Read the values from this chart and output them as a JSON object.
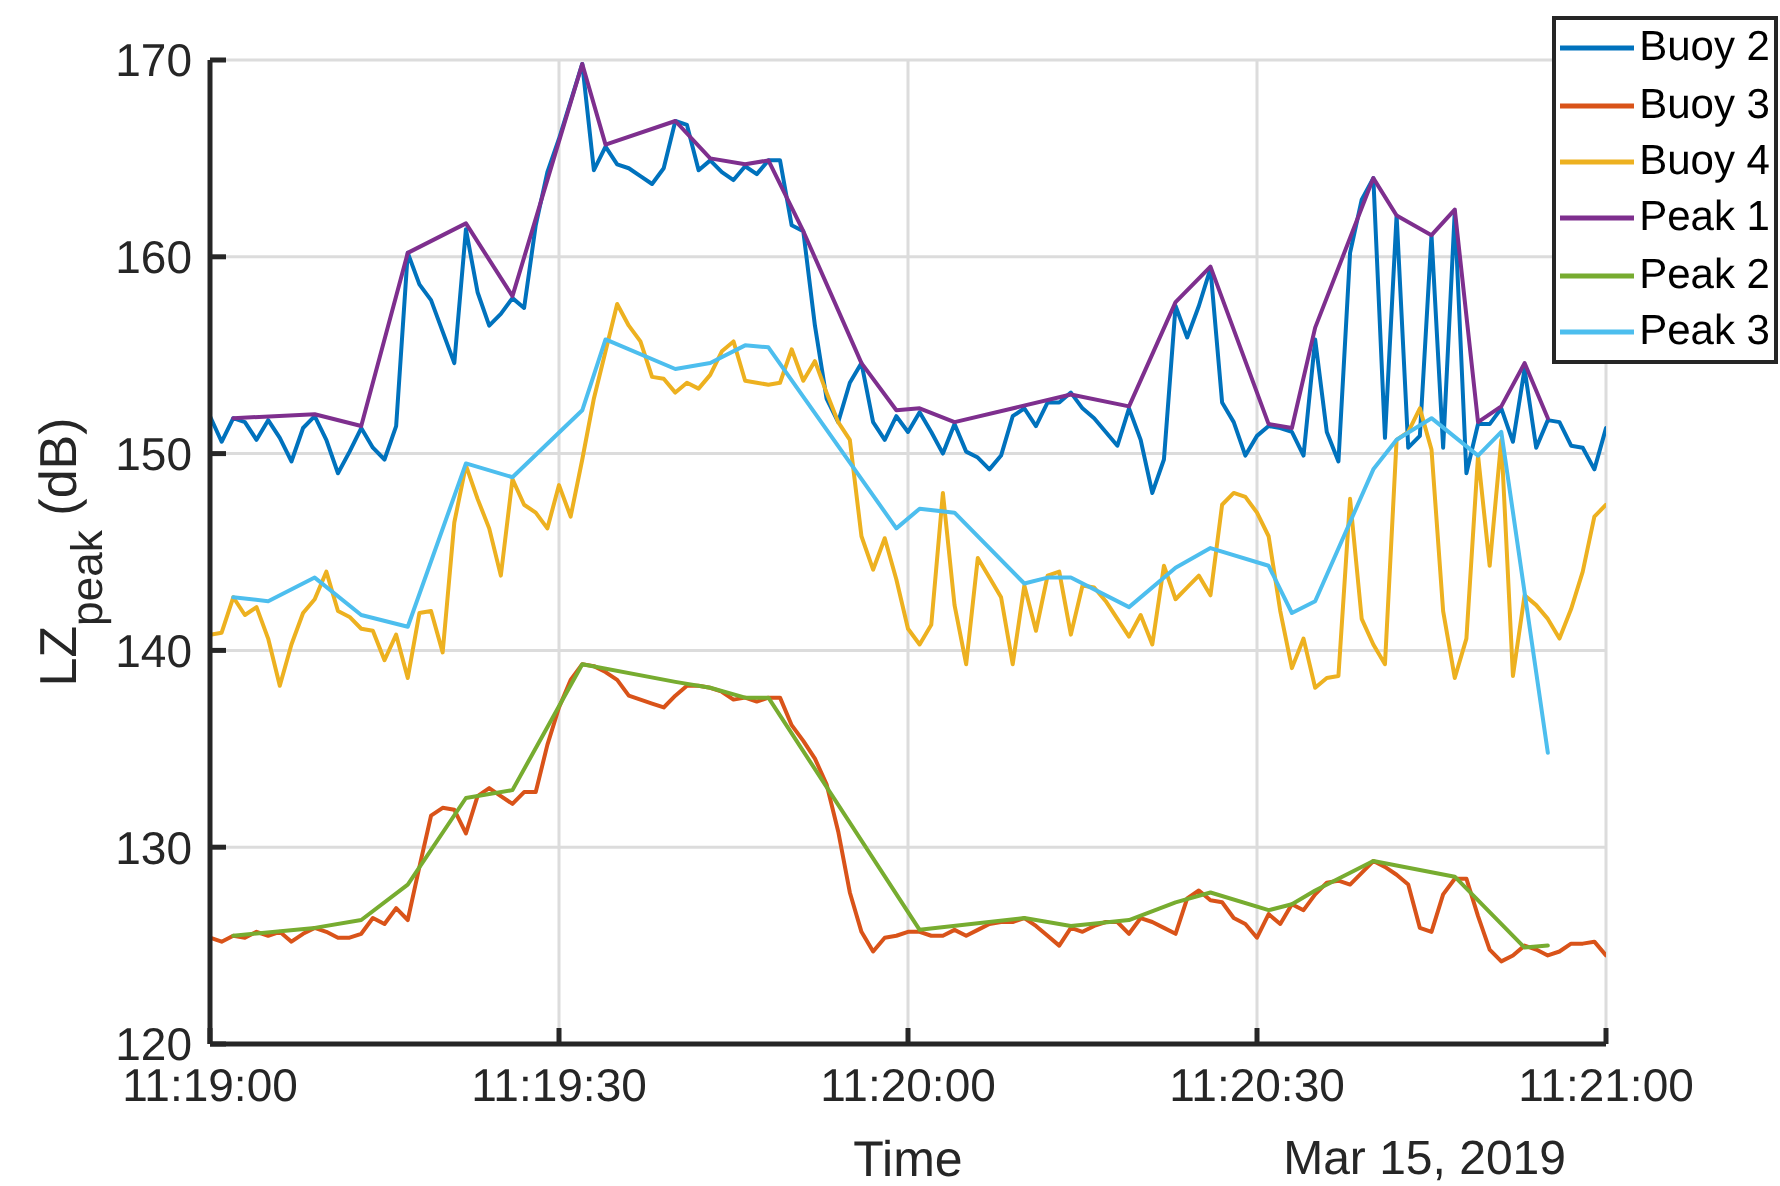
{
  "chart_data": {
    "type": "line",
    "xlabel": "Time",
    "ylabel": "LZ$_{peak}$ (dB)",
    "annotations": [
      "Mar 15, 2019"
    ],
    "x": [
      "2019-03-15T11:19:00",
      "2019-03-15T11:19:01",
      "2019-03-15T11:19:02",
      "2019-03-15T11:19:03",
      "2019-03-15T11:19:04",
      "2019-03-15T11:19:05",
      "2019-03-15T11:19:06",
      "2019-03-15T11:19:07",
      "2019-03-15T11:19:08",
      "2019-03-15T11:19:09",
      "2019-03-15T11:19:10",
      "2019-03-15T11:19:11",
      "2019-03-15T11:19:12",
      "2019-03-15T11:19:13",
      "2019-03-15T11:19:14",
      "2019-03-15T11:19:15",
      "2019-03-15T11:19:16",
      "2019-03-15T11:19:17",
      "2019-03-15T11:19:18",
      "2019-03-15T11:19:19",
      "2019-03-15T11:19:20",
      "2019-03-15T11:19:21",
      "2019-03-15T11:19:22",
      "2019-03-15T11:19:23",
      "2019-03-15T11:19:24",
      "2019-03-15T11:19:25",
      "2019-03-15T11:19:26",
      "2019-03-15T11:19:27",
      "2019-03-15T11:19:28",
      "2019-03-15T11:19:29",
      "2019-03-15T11:19:30",
      "2019-03-15T11:19:31",
      "2019-03-15T11:19:32",
      "2019-03-15T11:19:33",
      "2019-03-15T11:19:34",
      "2019-03-15T11:19:35",
      "2019-03-15T11:19:36",
      "2019-03-15T11:19:37",
      "2019-03-15T11:19:38",
      "2019-03-15T11:19:39",
      "2019-03-15T11:19:40",
      "2019-03-15T11:19:41",
      "2019-03-15T11:19:42",
      "2019-03-15T11:19:43",
      "2019-03-15T11:19:44",
      "2019-03-15T11:19:45",
      "2019-03-15T11:19:46",
      "2019-03-15T11:19:47",
      "2019-03-15T11:19:48",
      "2019-03-15T11:19:49",
      "2019-03-15T11:19:50",
      "2019-03-15T11:19:51",
      "2019-03-15T11:19:52",
      "2019-03-15T11:19:53",
      "2019-03-15T11:19:54",
      "2019-03-15T11:19:55",
      "2019-03-15T11:19:56",
      "2019-03-15T11:19:57",
      "2019-03-15T11:19:58",
      "2019-03-15T11:19:59",
      "2019-03-15T11:20:00",
      "2019-03-15T11:20:01",
      "2019-03-15T11:20:02",
      "2019-03-15T11:20:03",
      "2019-03-15T11:20:04",
      "2019-03-15T11:20:05",
      "2019-03-15T11:20:06",
      "2019-03-15T11:20:07",
      "2019-03-15T11:20:08",
      "2019-03-15T11:20:09",
      "2019-03-15T11:20:10",
      "2019-03-15T11:20:11",
      "2019-03-15T11:20:12",
      "2019-03-15T11:20:13",
      "2019-03-15T11:20:14",
      "2019-03-15T11:20:15",
      "2019-03-15T11:20:16",
      "2019-03-15T11:20:17",
      "2019-03-15T11:20:18",
      "2019-03-15T11:20:19",
      "2019-03-15T11:20:20",
      "2019-03-15T11:20:21",
      "2019-03-15T11:20:22",
      "2019-03-15T11:20:23",
      "2019-03-15T11:20:24",
      "2019-03-15T11:20:25",
      "2019-03-15T11:20:26",
      "2019-03-15T11:20:27",
      "2019-03-15T11:20:28",
      "2019-03-15T11:20:29",
      "2019-03-15T11:20:30",
      "2019-03-15T11:20:31",
      "2019-03-15T11:20:32",
      "2019-03-15T11:20:33",
      "2019-03-15T11:20:34",
      "2019-03-15T11:20:35",
      "2019-03-15T11:20:36",
      "2019-03-15T11:20:37",
      "2019-03-15T11:20:38",
      "2019-03-15T11:20:39",
      "2019-03-15T11:20:40",
      "2019-03-15T11:20:41",
      "2019-03-15T11:20:42",
      "2019-03-15T11:20:43",
      "2019-03-15T11:20:44",
      "2019-03-15T11:20:45",
      "2019-03-15T11:20:46",
      "2019-03-15T11:20:47",
      "2019-03-15T11:20:48",
      "2019-03-15T11:20:49",
      "2019-03-15T11:20:50",
      "2019-03-15T11:20:51",
      "2019-03-15T11:20:52",
      "2019-03-15T11:20:53",
      "2019-03-15T11:20:54",
      "2019-03-15T11:20:55",
      "2019-03-15T11:20:56",
      "2019-03-15T11:20:57",
      "2019-03-15T11:20:58",
      "2019-03-15T11:20:59",
      "2019-03-15T11:21:00"
    ],
    "series": [
      {
        "name": "Buoy 2",
        "color": "#0072bd",
        "values": [
          151.9,
          150.6,
          151.8,
          151.6,
          150.7,
          151.7,
          150.8,
          149.6,
          151.3,
          151.9,
          150.7,
          149.0,
          150.1,
          151.3,
          150.3,
          149.7,
          151.4,
          160.2,
          158.6,
          157.8,
          156.2,
          154.6,
          161.4,
          158.2,
          156.5,
          157.1,
          157.9,
          157.4,
          161.6,
          164.3,
          166.0,
          167.9,
          169.8,
          164.4,
          165.6,
          164.7,
          164.5,
          164.1,
          163.7,
          164.5,
          166.9,
          166.7,
          164.4,
          164.9,
          164.3,
          163.9,
          164.6,
          164.2,
          164.9,
          164.9,
          161.6,
          161.3,
          156.5,
          152.8,
          151.6,
          153.6,
          154.6,
          151.6,
          150.7,
          151.9,
          151.1,
          152.1,
          151.1,
          150.0,
          151.5,
          150.1,
          149.8,
          149.2,
          149.9,
          151.9,
          152.3,
          151.4,
          152.6,
          152.6,
          153.1,
          152.3,
          151.8,
          151.1,
          150.4,
          152.3,
          150.7,
          148.0,
          149.7,
          157.5,
          155.9,
          157.5,
          159.4,
          152.6,
          151.6,
          149.9,
          150.9,
          151.4,
          151.3,
          151.1,
          149.9,
          155.8,
          151.1,
          149.6,
          160.2,
          162.9,
          164.0,
          150.8,
          162.1,
          150.3,
          150.9,
          161.1,
          150.3,
          162.3,
          149.0,
          151.5,
          151.5,
          152.3,
          150.6,
          154.3,
          150.3,
          151.7,
          151.6,
          150.4,
          150.3,
          149.2,
          151.3
        ]
      },
      {
        "name": "Buoy 3",
        "color": "#d95319",
        "values": [
          125.4,
          125.2,
          125.5,
          125.4,
          125.7,
          125.5,
          125.7,
          125.2,
          125.6,
          125.9,
          125.7,
          125.4,
          125.4,
          125.6,
          126.4,
          126.1,
          126.9,
          126.3,
          129.0,
          131.6,
          132.0,
          131.9,
          130.7,
          132.6,
          133.0,
          132.6,
          132.2,
          132.8,
          132.8,
          135.2,
          137.1,
          138.5,
          139.3,
          139.2,
          138.9,
          138.5,
          137.7,
          137.5,
          137.3,
          137.1,
          137.7,
          138.2,
          138.2,
          138.1,
          137.9,
          137.5,
          137.6,
          137.4,
          137.6,
          137.6,
          136.2,
          135.4,
          134.5,
          133.2,
          130.8,
          127.7,
          125.7,
          124.7,
          125.4,
          125.5,
          125.7,
          125.7,
          125.5,
          125.5,
          125.8,
          125.5,
          125.8,
          126.1,
          126.2,
          126.2,
          126.4,
          126.0,
          125.5,
          125.0,
          125.9,
          125.7,
          126.0,
          126.2,
          126.2,
          125.6,
          126.4,
          126.2,
          125.9,
          125.6,
          127.4,
          127.8,
          127.3,
          127.2,
          126.4,
          126.1,
          125.4,
          126.6,
          126.1,
          127.1,
          126.8,
          127.6,
          128.2,
          128.3,
          128.1,
          128.7,
          129.3,
          129.0,
          128.6,
          128.1,
          125.9,
          125.7,
          127.6,
          128.4,
          128.4,
          126.5,
          124.8,
          124.2,
          124.5,
          125.0,
          124.8,
          124.5,
          124.7,
          125.1,
          125.1,
          125.2,
          124.5
        ]
      },
      {
        "name": "Buoy 4",
        "color": "#edb120",
        "values": [
          140.8,
          140.9,
          142.7,
          141.8,
          142.2,
          140.6,
          138.2,
          140.3,
          141.9,
          142.6,
          144.0,
          142.0,
          141.7,
          141.1,
          141.0,
          139.5,
          140.8,
          138.6,
          141.9,
          142.0,
          139.9,
          146.5,
          149.4,
          147.7,
          146.2,
          143.8,
          148.7,
          147.4,
          147.0,
          146.2,
          148.4,
          146.8,
          149.7,
          152.8,
          155.2,
          157.6,
          156.5,
          155.7,
          153.9,
          153.8,
          153.1,
          153.6,
          153.3,
          154.0,
          155.2,
          155.7,
          153.7,
          153.6,
          153.5,
          153.6,
          155.3,
          153.7,
          154.7,
          153.1,
          151.6,
          150.7,
          145.8,
          144.1,
          145.7,
          143.6,
          141.1,
          140.3,
          141.3,
          148.0,
          142.3,
          139.3,
          144.7,
          143.7,
          142.7,
          139.3,
          143.3,
          141.0,
          143.8,
          144.0,
          140.8,
          143.3,
          143.2,
          142.5,
          141.6,
          140.7,
          141.8,
          140.3,
          144.3,
          142.6,
          143.2,
          143.8,
          142.8,
          147.4,
          148.0,
          147.8,
          147.0,
          145.8,
          142.0,
          139.1,
          140.6,
          138.1,
          138.6,
          138.7,
          147.7,
          141.6,
          140.3,
          139.3,
          150.7,
          151.1,
          152.3,
          150.2,
          142.0,
          138.6,
          140.6,
          149.9,
          144.3,
          150.7,
          138.7,
          142.8,
          142.3,
          141.6,
          140.6,
          142.1,
          144.0,
          146.8,
          147.4
        ]
      },
      {
        "name": "Peak 1",
        "color": "#7e2f8e",
        "x": [
          "2019-03-15T11:19:02",
          "2019-03-15T11:19:09",
          "2019-03-15T11:19:13",
          "2019-03-15T11:19:17",
          "2019-03-15T11:19:22",
          "2019-03-15T11:19:26",
          "2019-03-15T11:19:32",
          "2019-03-15T11:19:34",
          "2019-03-15T11:19:40",
          "2019-03-15T11:19:43",
          "2019-03-15T11:19:46",
          "2019-03-15T11:19:48",
          "2019-03-15T11:19:51",
          "2019-03-15T11:19:56",
          "2019-03-15T11:19:59",
          "2019-03-15T11:20:01",
          "2019-03-15T11:20:04",
          "2019-03-15T11:20:14",
          "2019-03-15T11:20:19",
          "2019-03-15T11:20:23",
          "2019-03-15T11:20:26",
          "2019-03-15T11:20:31",
          "2019-03-15T11:20:33",
          "2019-03-15T11:20:35",
          "2019-03-15T11:20:40",
          "2019-03-15T11:20:42",
          "2019-03-15T11:20:45",
          "2019-03-15T11:20:47",
          "2019-03-15T11:20:49",
          "2019-03-15T11:20:51",
          "2019-03-15T11:20:53",
          "2019-03-15T11:20:55"
        ],
        "values": [
          151.8,
          152.0,
          151.4,
          160.2,
          161.7,
          158.0,
          169.8,
          165.7,
          166.9,
          165.0,
          164.7,
          164.9,
          161.3,
          154.6,
          152.2,
          152.3,
          151.6,
          153.0,
          152.4,
          157.7,
          159.5,
          151.5,
          151.3,
          156.4,
          164.0,
          162.1,
          161.1,
          162.4,
          151.6,
          152.4,
          154.6,
          151.8
        ]
      },
      {
        "name": "Peak 2",
        "color": "#77ac30",
        "x": [
          "2019-03-15T11:19:02",
          "2019-03-15T11:19:09",
          "2019-03-15T11:19:13",
          "2019-03-15T11:19:17",
          "2019-03-15T11:19:22",
          "2019-03-15T11:19:26",
          "2019-03-15T11:19:32",
          "2019-03-15T11:19:40",
          "2019-03-15T11:19:43",
          "2019-03-15T11:19:46",
          "2019-03-15T11:19:48",
          "2019-03-15T11:20:01",
          "2019-03-15T11:20:10",
          "2019-03-15T11:20:14",
          "2019-03-15T11:20:19",
          "2019-03-15T11:20:23",
          "2019-03-15T11:20:26",
          "2019-03-15T11:20:31",
          "2019-03-15T11:20:33",
          "2019-03-15T11:20:35",
          "2019-03-15T11:20:40",
          "2019-03-15T11:20:47",
          "2019-03-15T11:20:53",
          "2019-03-15T11:20:55"
        ],
        "values": [
          125.5,
          125.9,
          126.3,
          128.1,
          132.5,
          132.9,
          139.3,
          138.4,
          138.1,
          137.6,
          137.6,
          125.8,
          126.4,
          126.0,
          126.3,
          127.2,
          127.7,
          126.8,
          127.1,
          127.8,
          129.3,
          128.5,
          124.9,
          125.0
        ]
      },
      {
        "name": "Peak 3",
        "color": "#4dbeee",
        "x": [
          "2019-03-15T11:19:02",
          "2019-03-15T11:19:05",
          "2019-03-15T11:19:09",
          "2019-03-15T11:19:13",
          "2019-03-15T11:19:17",
          "2019-03-15T11:19:22",
          "2019-03-15T11:19:26",
          "2019-03-15T11:19:32",
          "2019-03-15T11:19:34",
          "2019-03-15T11:19:40",
          "2019-03-15T11:19:43",
          "2019-03-15T11:19:46",
          "2019-03-15T11:19:48",
          "2019-03-15T11:19:59",
          "2019-03-15T11:20:01",
          "2019-03-15T11:20:04",
          "2019-03-15T11:20:10",
          "2019-03-15T11:20:12",
          "2019-03-15T11:20:14",
          "2019-03-15T11:20:19",
          "2019-03-15T11:20:23",
          "2019-03-15T11:20:26",
          "2019-03-15T11:20:31",
          "2019-03-15T11:20:33",
          "2019-03-15T11:20:35",
          "2019-03-15T11:20:40",
          "2019-03-15T11:20:42",
          "2019-03-15T11:20:45",
          "2019-03-15T11:20:49",
          "2019-03-15T11:20:51",
          "2019-03-15T11:20:55"
        ],
        "values": [
          142.7,
          142.5,
          143.7,
          141.8,
          141.2,
          149.5,
          148.8,
          152.2,
          155.8,
          154.3,
          154.6,
          155.5,
          155.4,
          146.2,
          147.2,
          147.0,
          143.4,
          143.7,
          143.7,
          142.2,
          144.2,
          145.2,
          144.3,
          141.9,
          142.5,
          149.2,
          150.7,
          151.8,
          149.9,
          151.1,
          134.8
        ]
      }
    ],
    "xlim": [
      "2019-03-15T11:19:00",
      "2019-03-15T11:21:00"
    ],
    "xticks": [
      {
        "value": "2019-03-15T11:19:00",
        "label": "11:19:00"
      },
      {
        "value": "2019-03-15T11:19:30",
        "label": "11:19:30"
      },
      {
        "value": "2019-03-15T11:20:00",
        "label": "11:20:00"
      },
      {
        "value": "2019-03-15T11:20:30",
        "label": "11:20:30"
      },
      {
        "value": "2019-03-15T11:21:00",
        "label": "11:21:00"
      }
    ],
    "ylim": [
      120,
      170
    ],
    "yticks": [
      120,
      130,
      140,
      150,
      160,
      170
    ],
    "grid": true,
    "legend": "top right"
  }
}
